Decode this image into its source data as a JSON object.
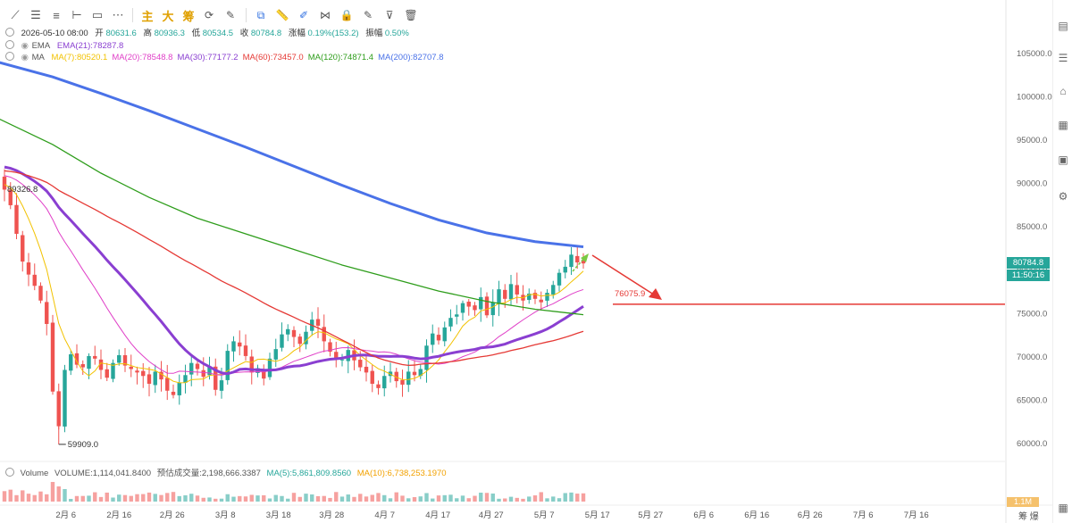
{
  "toolbar": {
    "items": [
      {
        "name": "trend-line-icon",
        "glyph": "⟋"
      },
      {
        "name": "horizontal-lines-icon",
        "glyph": "☰"
      },
      {
        "name": "parallel-channel-icon",
        "glyph": "≡"
      },
      {
        "name": "horizontal-ray-icon",
        "glyph": "⊢"
      },
      {
        "name": "rectangle-icon",
        "glyph": "▭"
      },
      {
        "name": "more-tools-icon",
        "glyph": "⋯"
      }
    ],
    "zh_items": [
      "主",
      "大",
      "筹"
    ],
    "right_items": [
      {
        "name": "refresh-icon",
        "glyph": "⟳"
      },
      {
        "name": "edit-icon",
        "glyph": "✎"
      },
      {
        "name": "copy-icon",
        "glyph": "⧉"
      },
      {
        "name": "ruler-icon",
        "glyph": "📏"
      },
      {
        "name": "draw-icon",
        "glyph": "✐"
      },
      {
        "name": "pattern-icon",
        "glyph": "⋈"
      },
      {
        "name": "lock-icon",
        "glyph": "🔒"
      },
      {
        "name": "settings-edit-icon",
        "glyph": "✎"
      },
      {
        "name": "filter-icon",
        "glyph": "⊽"
      },
      {
        "name": "trash-icon",
        "glyph": "🗑"
      }
    ]
  },
  "ohlc": {
    "date": "2026-05-10 08:00",
    "open_label": "开",
    "open": "80631.6",
    "high_label": "高",
    "high": "80936.3",
    "low_label": "低",
    "low": "80534.5",
    "close_label": "收",
    "close": "80784.8",
    "change_label": "涨幅",
    "change": "0.19%(153.2)",
    "amp_label": "振幅",
    "amp": "0.50%"
  },
  "ema": {
    "label": "EMA",
    "value": "EMA(21):78287.8"
  },
  "ma": {
    "label": "MA",
    "items": [
      {
        "text": "MA(7):80520.1",
        "color": "#f2c200"
      },
      {
        "text": "MA(20):78548.8",
        "color": "#e040c8"
      },
      {
        "text": "MA(30):77177.2",
        "color": "#8a3fd1"
      },
      {
        "text": "MA(60):73457.0",
        "color": "#e53935"
      },
      {
        "text": "MA(120):74871.4",
        "color": "#2e9d1b"
      },
      {
        "text": "MA(200):82707.8",
        "color": "#4a72e8"
      }
    ]
  },
  "annotations": {
    "high_label": "89326.8",
    "low_label": "59909.0",
    "target_label": "76075.9"
  },
  "price_tag": {
    "price": "80784.8",
    "timer": "11:50:16"
  },
  "volume": {
    "label": "Volume",
    "volume_text": "VOLUME:1,114,041.8400",
    "forecast_text": "预估成交量:2,198,666.3387",
    "ma5_text": "MA(5):5,861,809.8560",
    "ma10_text": "MA(10):6,738,253.1970",
    "tag": "1.1M"
  },
  "bottom_right": "筹 爆",
  "chart_data": {
    "type": "candlestick",
    "y_axis": {
      "min": 58000,
      "max": 108000,
      "ticks": [
        60000,
        65000,
        70000,
        75000,
        80000,
        85000,
        90000,
        95000,
        100000,
        105000
      ]
    },
    "y_tick_labels": [
      "60000.0",
      "65000.0",
      "70000.0",
      "75000.0",
      "80000.0",
      "85000.0",
      "90000.0",
      "95000.0",
      "100000.0",
      "105000.0"
    ],
    "x_tick_labels": [
      "2月 6",
      "2月 16",
      "2月 26",
      "3月 8",
      "3月 18",
      "3月 28",
      "4月 7",
      "4月 17",
      "4月 27",
      "5月 7",
      "5月 17",
      "5月 27",
      "6月 6",
      "6月 16",
      "6月 26",
      "7月 6",
      "7月 16"
    ],
    "x_tick_days": [
      6,
      16,
      26,
      36,
      46,
      56,
      66,
      76,
      86,
      96,
      106,
      116,
      126,
      136,
      146,
      156,
      166
    ],
    "first_day_index": 0,
    "closes": [
      89300,
      87500,
      84200,
      81000,
      79500,
      78200,
      76500,
      73800,
      66000,
      62000,
      68500,
      70300,
      69100,
      68800,
      70100,
      69800,
      68500,
      67600,
      69300,
      70200,
      69000,
      68600,
      68200,
      67800,
      66900,
      68300,
      67400,
      66100,
      65600,
      67000,
      67900,
      69300,
      68600,
      67700,
      68900,
      66200,
      67300,
      70700,
      71800,
      71200,
      70100,
      68200,
      68700,
      67500,
      69800,
      70900,
      72600,
      73200,
      72300,
      71500,
      72900,
      74300,
      73600,
      71800,
      70600,
      69800,
      69700,
      70800,
      69600,
      68800,
      68200,
      66900,
      66400,
      67800,
      68300,
      67200,
      66800,
      68300,
      67900,
      68600,
      71300,
      72700,
      71900,
      73400,
      74500,
      74900,
      76200,
      75800,
      75400,
      76900,
      74800,
      76300,
      77800,
      76700,
      78400,
      77200,
      76500,
      77300,
      76700,
      76300,
      77400,
      78300,
      79700,
      80400,
      81800,
      80900,
      80784.8
    ],
    "ohlc_note": "daily candles, approximate",
    "series": [
      {
        "name": "MA(7)",
        "color": "#f2c200"
      },
      {
        "name": "MA(20)",
        "color": "#e040c8"
      },
      {
        "name": "MA(30)",
        "color": "#8a3fd1"
      },
      {
        "name": "MA(60)",
        "color": "#e53935"
      },
      {
        "name": "MA(120)",
        "color": "#2e9d1b"
      },
      {
        "name": "MA(200)",
        "color": "#4a72e8"
      }
    ],
    "target_price": 76075.9,
    "up_color": "#26a69a",
    "down_color": "#ef5350"
  }
}
